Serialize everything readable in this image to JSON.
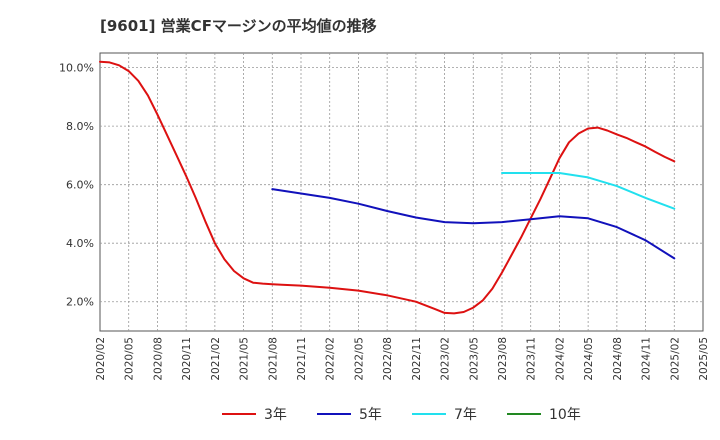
{
  "title": "[9601]  営業CFマージンの平均値の推移",
  "chart_data": {
    "type": "line",
    "title": "[9601]  営業CFマージンの平均値の推移",
    "xlabel": "",
    "ylabel": "",
    "x_start": "2020/02",
    "x_end": "2025/05",
    "ylim": [
      1.0,
      10.5
    ],
    "y_ticks": [
      2.0,
      4.0,
      6.0,
      8.0,
      10.0
    ],
    "y_tick_labels": [
      "2.0%",
      "4.0%",
      "6.0%",
      "8.0%",
      "10.0%"
    ],
    "x_tick_labels": [
      "2020/02",
      "2020/05",
      "2020/08",
      "2020/11",
      "2021/02",
      "2021/05",
      "2021/08",
      "2021/11",
      "2022/02",
      "2022/05",
      "2022/08",
      "2022/11",
      "2023/02",
      "2023/05",
      "2023/08",
      "2023/11",
      "2024/02",
      "2024/05",
      "2024/08",
      "2024/11",
      "2025/02",
      "2025/05"
    ],
    "grid": true,
    "legend_position": "bottom",
    "series": [
      {
        "name": "3年",
        "color": "#dd1111",
        "x": [
          "2020/02",
          "2020/03",
          "2020/04",
          "2020/05",
          "2020/06",
          "2020/07",
          "2020/08",
          "2020/09",
          "2020/10",
          "2020/11",
          "2020/12",
          "2021/01",
          "2021/02",
          "2021/03",
          "2021/04",
          "2021/05",
          "2021/06",
          "2021/07",
          "2021/08",
          "2021/09",
          "2021/11",
          "2022/02",
          "2022/05",
          "2022/08",
          "2022/11",
          "2023/01",
          "2023/02",
          "2023/03",
          "2023/04",
          "2023/05",
          "2023/06",
          "2023/07",
          "2023/08",
          "2023/09",
          "2023/10",
          "2023/11",
          "2023/12",
          "2024/01",
          "2024/02",
          "2024/03",
          "2024/04",
          "2024/05",
          "2024/06",
          "2024/07",
          "2024/08",
          "2024/09",
          "2024/10",
          "2024/11",
          "2024/12",
          "2025/01",
          "2025/02"
        ],
        "values": [
          10.2,
          10.18,
          10.08,
          9.88,
          9.55,
          9.05,
          8.4,
          7.7,
          7.0,
          6.3,
          5.55,
          4.75,
          4.0,
          3.45,
          3.05,
          2.8,
          2.65,
          2.62,
          2.6,
          2.58,
          2.55,
          2.48,
          2.38,
          2.22,
          2.0,
          1.75,
          1.62,
          1.6,
          1.65,
          1.8,
          2.05,
          2.45,
          3.0,
          3.6,
          4.2,
          4.85,
          5.5,
          6.2,
          6.9,
          7.45,
          7.75,
          7.92,
          7.95,
          7.85,
          7.72,
          7.6,
          7.45,
          7.3,
          7.12,
          6.95,
          6.8
        ]
      },
      {
        "name": "5年",
        "color": "#1111bb",
        "x": [
          "2021/08",
          "2021/11",
          "2022/02",
          "2022/05",
          "2022/08",
          "2022/11",
          "2023/02",
          "2023/05",
          "2023/08",
          "2023/11",
          "2024/02",
          "2024/05",
          "2024/08",
          "2024/11",
          "2025/02"
        ],
        "values": [
          5.85,
          5.7,
          5.55,
          5.35,
          5.1,
          4.88,
          4.72,
          4.68,
          4.72,
          4.82,
          4.92,
          4.85,
          4.55,
          4.1,
          3.48
        ]
      },
      {
        "name": "7年",
        "color": "#22e0ee",
        "x": [
          "2023/08",
          "2023/11",
          "2024/02",
          "2024/05",
          "2024/08",
          "2024/11",
          "2025/02"
        ],
        "values": [
          6.4,
          6.4,
          6.4,
          6.25,
          5.95,
          5.55,
          5.18
        ]
      },
      {
        "name": "10年",
        "color": "#228822",
        "x": [],
        "values": []
      }
    ]
  }
}
